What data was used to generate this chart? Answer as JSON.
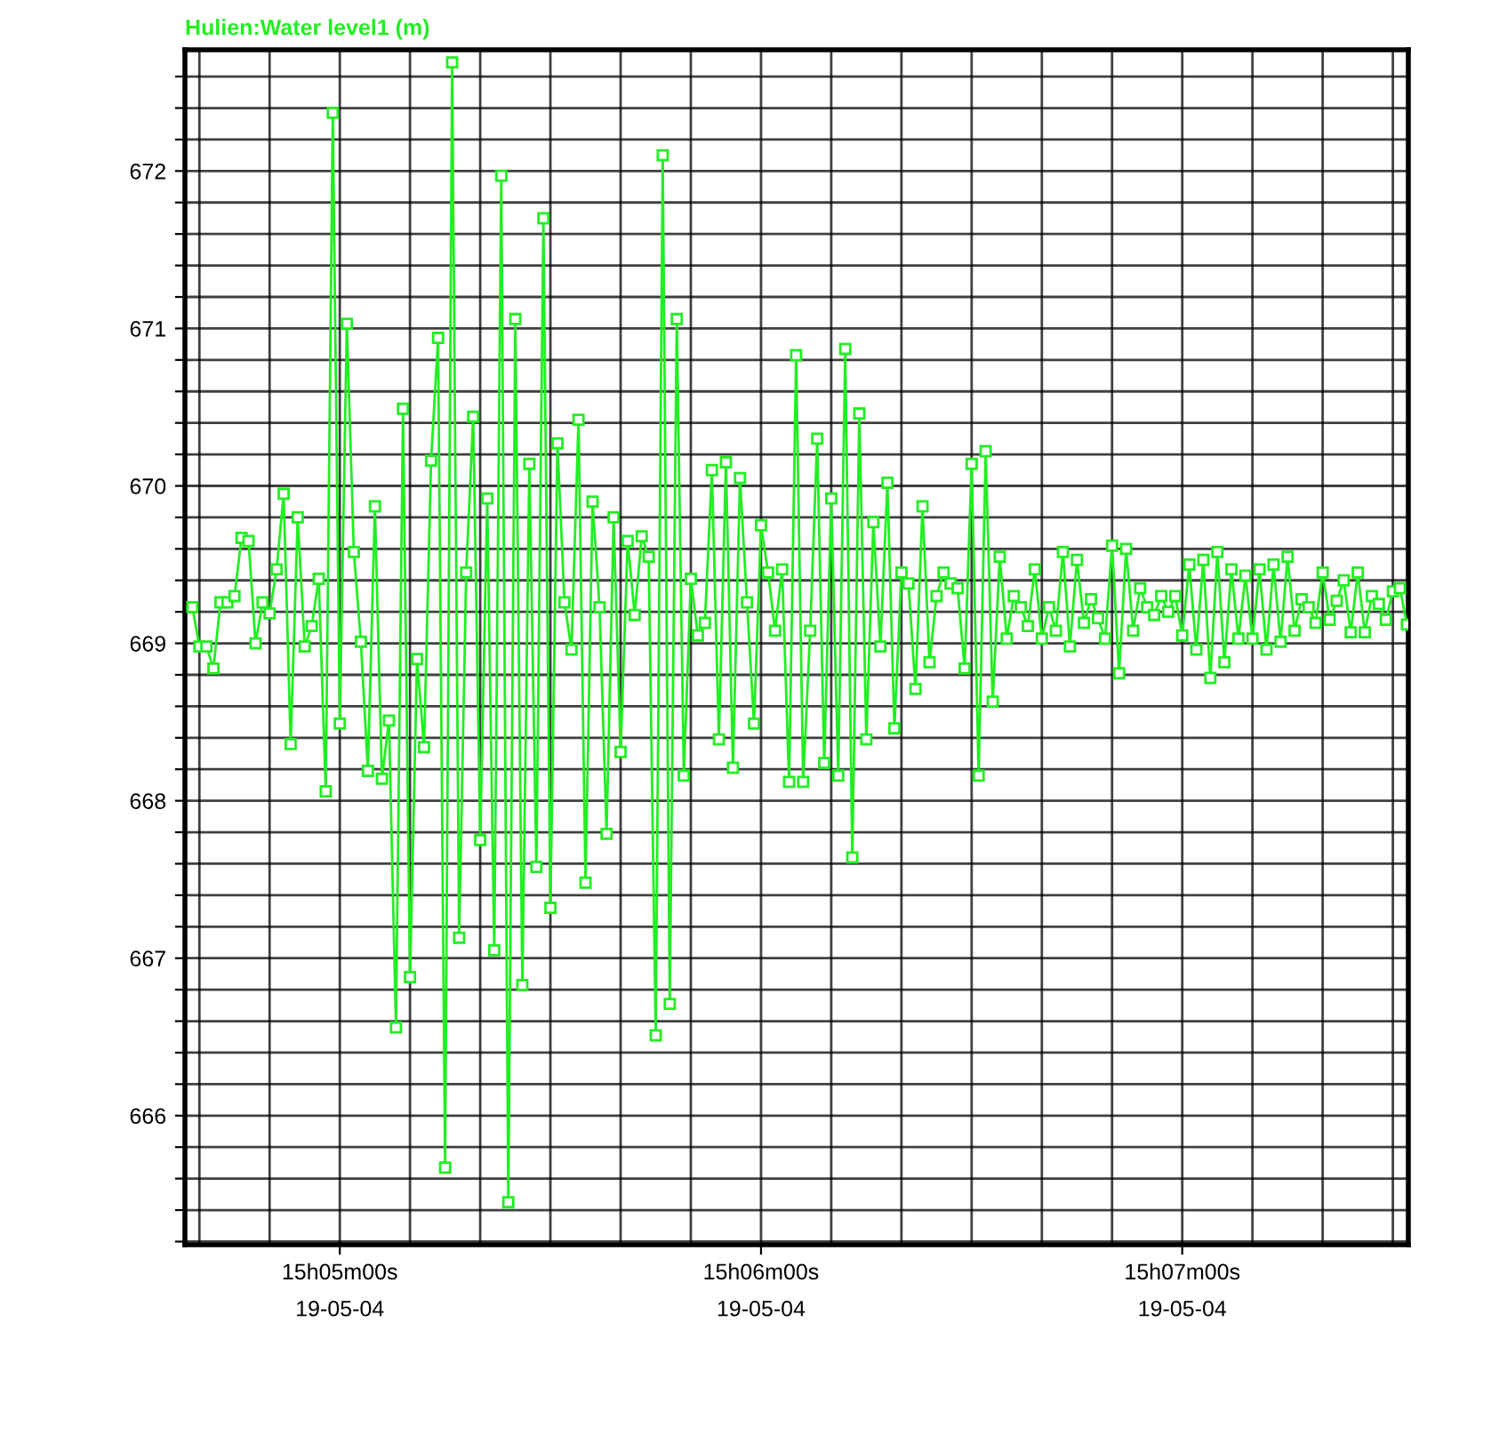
{
  "chart_data": {
    "type": "line",
    "title": "Hulien:Water level1 (m)",
    "grid": true,
    "marker": "square",
    "line_style": "solid",
    "ylim": [
      665.18,
      672.77
    ],
    "yticks": [
      {
        "value": 665.2,
        "label": null
      },
      {
        "value": 665.4,
        "label": null
      },
      {
        "value": 665.6,
        "label": null
      },
      {
        "value": 665.8,
        "label": null
      },
      666,
      {
        "value": 666.2,
        "label": null
      },
      {
        "value": 666.4,
        "label": null
      },
      {
        "value": 666.6,
        "label": null
      },
      {
        "value": 666.8,
        "label": null
      },
      667,
      {
        "value": 667.2,
        "label": null
      },
      {
        "value": 667.4,
        "label": null
      },
      {
        "value": 667.6,
        "label": null
      },
      {
        "value": 667.8,
        "label": null
      },
      668,
      {
        "value": 668.2,
        "label": null
      },
      {
        "value": 668.4,
        "label": null
      },
      {
        "value": 668.6,
        "label": null
      },
      {
        "value": 668.8,
        "label": null
      },
      669,
      {
        "value": 669.2,
        "label": null
      },
      {
        "value": 669.4,
        "label": null
      },
      {
        "value": 669.6,
        "label": null
      },
      {
        "value": 669.8,
        "label": null
      },
      670,
      {
        "value": 670.2,
        "label": null
      },
      {
        "value": 670.4,
        "label": null
      },
      {
        "value": 670.6,
        "label": null
      },
      {
        "value": 670.8,
        "label": null
      },
      671,
      {
        "value": 671.2,
        "label": null
      },
      {
        "value": 671.4,
        "label": null
      },
      {
        "value": 671.6,
        "label": null
      },
      {
        "value": 671.8,
        "label": null
      },
      672,
      {
        "value": 672.2,
        "label": null
      },
      {
        "value": 672.4,
        "label": null
      },
      {
        "value": 672.6,
        "label": null
      }
    ],
    "categories": [
      null,
      null,
      null,
      null,
      null,
      null,
      null,
      null,
      null,
      null,
      null,
      null,
      null,
      null,
      null,
      null,
      null,
      null,
      null,
      null,
      null,
      "15h05m00s\n19-05-04",
      null,
      null,
      null,
      null,
      null,
      null,
      null,
      null,
      null,
      null,
      null,
      null,
      null,
      null,
      null,
      null,
      null,
      null,
      null,
      null,
      null,
      null,
      null,
      null,
      null,
      null,
      null,
      null,
      null,
      null,
      null,
      null,
      null,
      null,
      null,
      null,
      null,
      null,
      null,
      null,
      null,
      null,
      null,
      null,
      null,
      null,
      null,
      null,
      null,
      null,
      null,
      null,
      null,
      null,
      null,
      null,
      null,
      null,
      null,
      "15h06m00s\n19-05-04",
      null,
      null,
      null,
      null,
      null,
      null,
      null,
      null,
      null,
      null,
      null,
      null,
      null,
      null,
      null,
      null,
      null,
      null,
      null,
      null,
      null,
      null,
      null,
      null,
      null,
      null,
      null,
      null,
      null,
      null,
      null,
      null,
      null,
      null,
      null,
      null,
      null,
      null,
      null,
      null,
      null,
      null,
      null,
      null,
      null,
      null,
      null,
      null,
      null,
      null,
      null,
      null,
      null,
      null,
      null,
      null,
      null,
      null,
      null,
      "15h07m00s\n19-05-04",
      null,
      null,
      null,
      null,
      null,
      null,
      null,
      null,
      null,
      null,
      null,
      null,
      null,
      null,
      null,
      null,
      null,
      null,
      null,
      null,
      null,
      null,
      null,
      null,
      null,
      null,
      null,
      null,
      null,
      null,
      null,
      null
    ],
    "series": [
      {
        "color": "#22ee22",
        "values": [
          669.23,
          668.98,
          668.98,
          668.84,
          669.26,
          669.26,
          669.3,
          669.67,
          669.65,
          669.0,
          669.26,
          669.19,
          669.47,
          669.95,
          668.36,
          669.8,
          668.98,
          669.11,
          669.41,
          668.06,
          672.37,
          668.49,
          671.03,
          669.58,
          669.01,
          668.19,
          669.87,
          668.14,
          668.51,
          666.56,
          670.49,
          666.88,
          668.9,
          668.34,
          670.16,
          670.94,
          665.67,
          672.69,
          667.13,
          669.45,
          670.44,
          667.75,
          669.92,
          667.05,
          671.97,
          665.45,
          671.06,
          666.83,
          670.14,
          667.58,
          671.7,
          667.32,
          670.27,
          669.26,
          668.96,
          670.42,
          667.48,
          669.9,
          669.23,
          667.79,
          669.8,
          668.31,
          669.65,
          669.18,
          669.68,
          669.55,
          666.51,
          672.1,
          666.71,
          671.06,
          668.16,
          669.41,
          669.05,
          669.13,
          670.1,
          668.39,
          670.15,
          668.21,
          670.05,
          669.26,
          668.49,
          669.75,
          669.45,
          669.08,
          669.47,
          668.12,
          670.83,
          668.12,
          669.08,
          670.3,
          668.24,
          669.92,
          668.16,
          670.87,
          667.64,
          670.46,
          668.39,
          669.77,
          668.98,
          670.02,
          668.46,
          669.45,
          669.38,
          668.71,
          669.87,
          668.88,
          669.3,
          669.45,
          669.38,
          669.35,
          668.84,
          670.14,
          668.16,
          670.22,
          668.63,
          669.55,
          669.03,
          669.3,
          669.23,
          669.11,
          669.47,
          669.03,
          669.23,
          669.08,
          669.58,
          668.98,
          669.53,
          669.13,
          669.28,
          669.16,
          669.03,
          669.62,
          668.81,
          669.6,
          669.08,
          669.35,
          669.23,
          669.18,
          669.3,
          669.2,
          669.3,
          669.05,
          669.5,
          668.96,
          669.53,
          668.78,
          669.58,
          668.88,
          669.47,
          669.03,
          669.43,
          669.03,
          669.47,
          668.96,
          669.5,
          669.01,
          669.55,
          669.08,
          669.28,
          669.23,
          669.13,
          669.45,
          669.15,
          669.27,
          669.4,
          669.07,
          669.45,
          669.07,
          669.3,
          669.25,
          669.15,
          669.33,
          669.35,
          669.12
        ]
      }
    ]
  }
}
